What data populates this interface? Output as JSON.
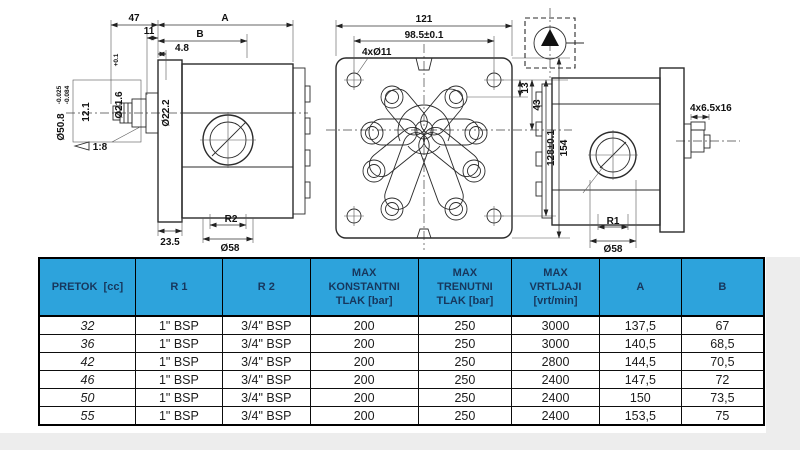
{
  "page": {
    "bg": "#ffffff",
    "lower_bg": "#ededed"
  },
  "colors": {
    "table_header_bg": "#2da3dc",
    "table_header_text": "#17375d",
    "drawing_line": "#2b2b2b"
  },
  "drawing": {
    "left": {
      "d47": "47",
      "dA": "A",
      "d11": "11",
      "dB": "B",
      "d48": "4.8",
      "d216": "Ø21.6",
      "d216_tol": "+0.1",
      "d121": "12.1",
      "d222": "Ø22.2",
      "d508": "Ø50.8",
      "d508_tol_upper": "-0.025",
      "d508_tol_lower": "-0.084",
      "taper": "1:8",
      "d235": "23.5",
      "dR2": "R2",
      "d58": "Ø58"
    },
    "front": {
      "d121": "121",
      "d985": "98.5±0.1",
      "holes": "4xØ11",
      "d13": "13",
      "d43": "43",
      "d128": "128±0.1",
      "d154": "154"
    },
    "right": {
      "key": "4x6.5x16",
      "dR1": "R1",
      "d58": "Ø58"
    }
  },
  "table": {
    "headers": [
      "PRETOK  [cc]",
      "R 1",
      "R 2",
      "MAX\nKONSTANTNI\nTLAK [bar]",
      "MAX\nTRENUTNI\nTLAK [bar]",
      "MAX\nVRTLJAJI\n[vrt/min]",
      "A",
      "B"
    ],
    "rows": [
      [
        "32",
        "1\" BSP",
        "3/4\" BSP",
        "200",
        "250",
        "3000",
        "137,5",
        "67"
      ],
      [
        "36",
        "1\" BSP",
        "3/4\" BSP",
        "200",
        "250",
        "3000",
        "140,5",
        "68,5"
      ],
      [
        "42",
        "1\" BSP",
        "3/4\" BSP",
        "200",
        "250",
        "2800",
        "144,5",
        "70,5"
      ],
      [
        "46",
        "1\" BSP",
        "3/4\" BSP",
        "200",
        "250",
        "2400",
        "147,5",
        "72"
      ],
      [
        "50",
        "1\" BSP",
        "3/4\" BSP",
        "200",
        "250",
        "2400",
        "150",
        "73,5"
      ],
      [
        "55",
        "1\" BSP",
        "3/4\" BSP",
        "200",
        "250",
        "2400",
        "153,5",
        "75"
      ]
    ]
  }
}
